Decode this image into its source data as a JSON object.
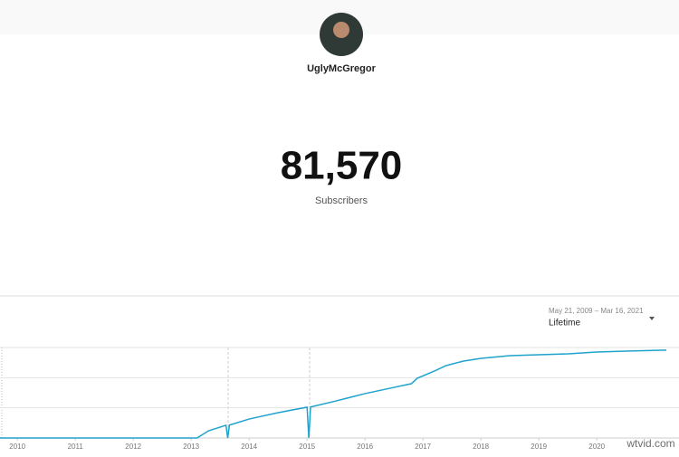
{
  "channel": {
    "name": "UglyMcGregor"
  },
  "stat": {
    "value": "81,570",
    "label": "Subscribers"
  },
  "range": {
    "dates": "May 21, 2009 – Mar 16, 2021",
    "period": "Lifetime"
  },
  "watermark": "wtvid.com",
  "chart_data": {
    "type": "line",
    "color": "#1ea3cc",
    "x": [
      2009.7,
      2013.1,
      2013.3,
      2013.6,
      2013.63,
      2013.66,
      2014,
      2014.5,
      2015,
      2015.03,
      2015.06,
      2015.5,
      2016,
      2016.5,
      2016.8,
      2016.9,
      2017.2,
      2017.4,
      2017.7,
      2018,
      2018.5,
      2019,
      2019.5,
      2020,
      2020.5,
      2021.2
    ],
    "values": [
      0,
      0,
      6700,
      11800,
      0,
      12000,
      17600,
      23500,
      28600,
      0,
      28800,
      34400,
      41200,
      47000,
      50400,
      55400,
      62200,
      67200,
      71400,
      73900,
      76400,
      77300,
      78100,
      79800,
      80600,
      81570
    ],
    "xlim": [
      2009.7,
      2021.2
    ],
    "xticks": [
      2010,
      2011,
      2012,
      2013,
      2014,
      2015,
      2016,
      2017,
      2018,
      2019,
      2020
    ],
    "ylim": [
      0,
      84000
    ],
    "ygrid": [
      28000,
      56000,
      84000
    ]
  }
}
